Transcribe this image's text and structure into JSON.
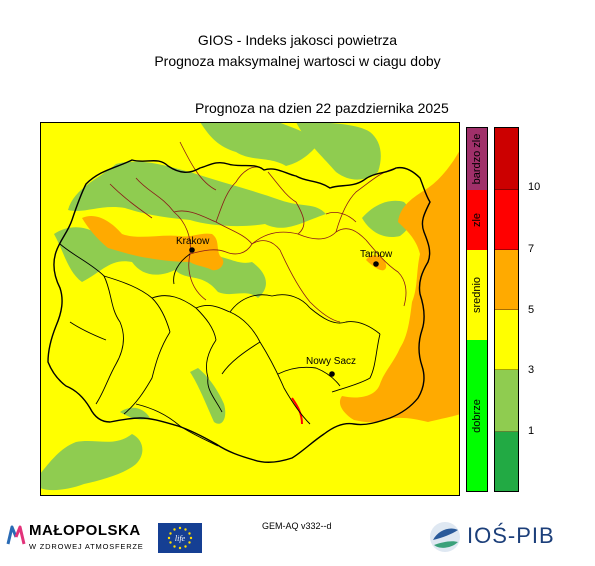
{
  "header": {
    "title": "GIOS - Indeks jakosci powietrza",
    "subtitle": "Prognoza maksymalnej wartosci w ciagu doby",
    "date_line": "Prognoza na dzien  22 pazdziernika 2025"
  },
  "map": {
    "cities": [
      {
        "name": "Krakow"
      },
      {
        "name": "Tarnow"
      },
      {
        "name": "Nowy Sacz"
      }
    ]
  },
  "legend": {
    "categories": [
      {
        "label": "bardzo zle",
        "color": "#a0306a"
      },
      {
        "label": "zle",
        "color": "#ff0000"
      },
      {
        "label": "srednio",
        "color": "#ffff00"
      },
      {
        "label": "dobrze",
        "color": "#00ff00"
      }
    ],
    "index_levels": [
      {
        "color": "#cc0000"
      },
      {
        "color": "#ff0000"
      },
      {
        "color": "#ffaa00"
      },
      {
        "color": "#ffff00"
      },
      {
        "color": "#8fcc50"
      },
      {
        "color": "#22aa44"
      }
    ],
    "ticks": [
      "10",
      "7",
      "5",
      "3",
      "1"
    ]
  },
  "footer": {
    "model": "GEM-AQ v332--d",
    "malopolska_title": "MAŁOPOLSKA",
    "malopolska_subtitle": "W ZDROWEJ ATMOSFERZE",
    "eu_life_text": "life",
    "ios_text": "IOŚ-PIB"
  }
}
